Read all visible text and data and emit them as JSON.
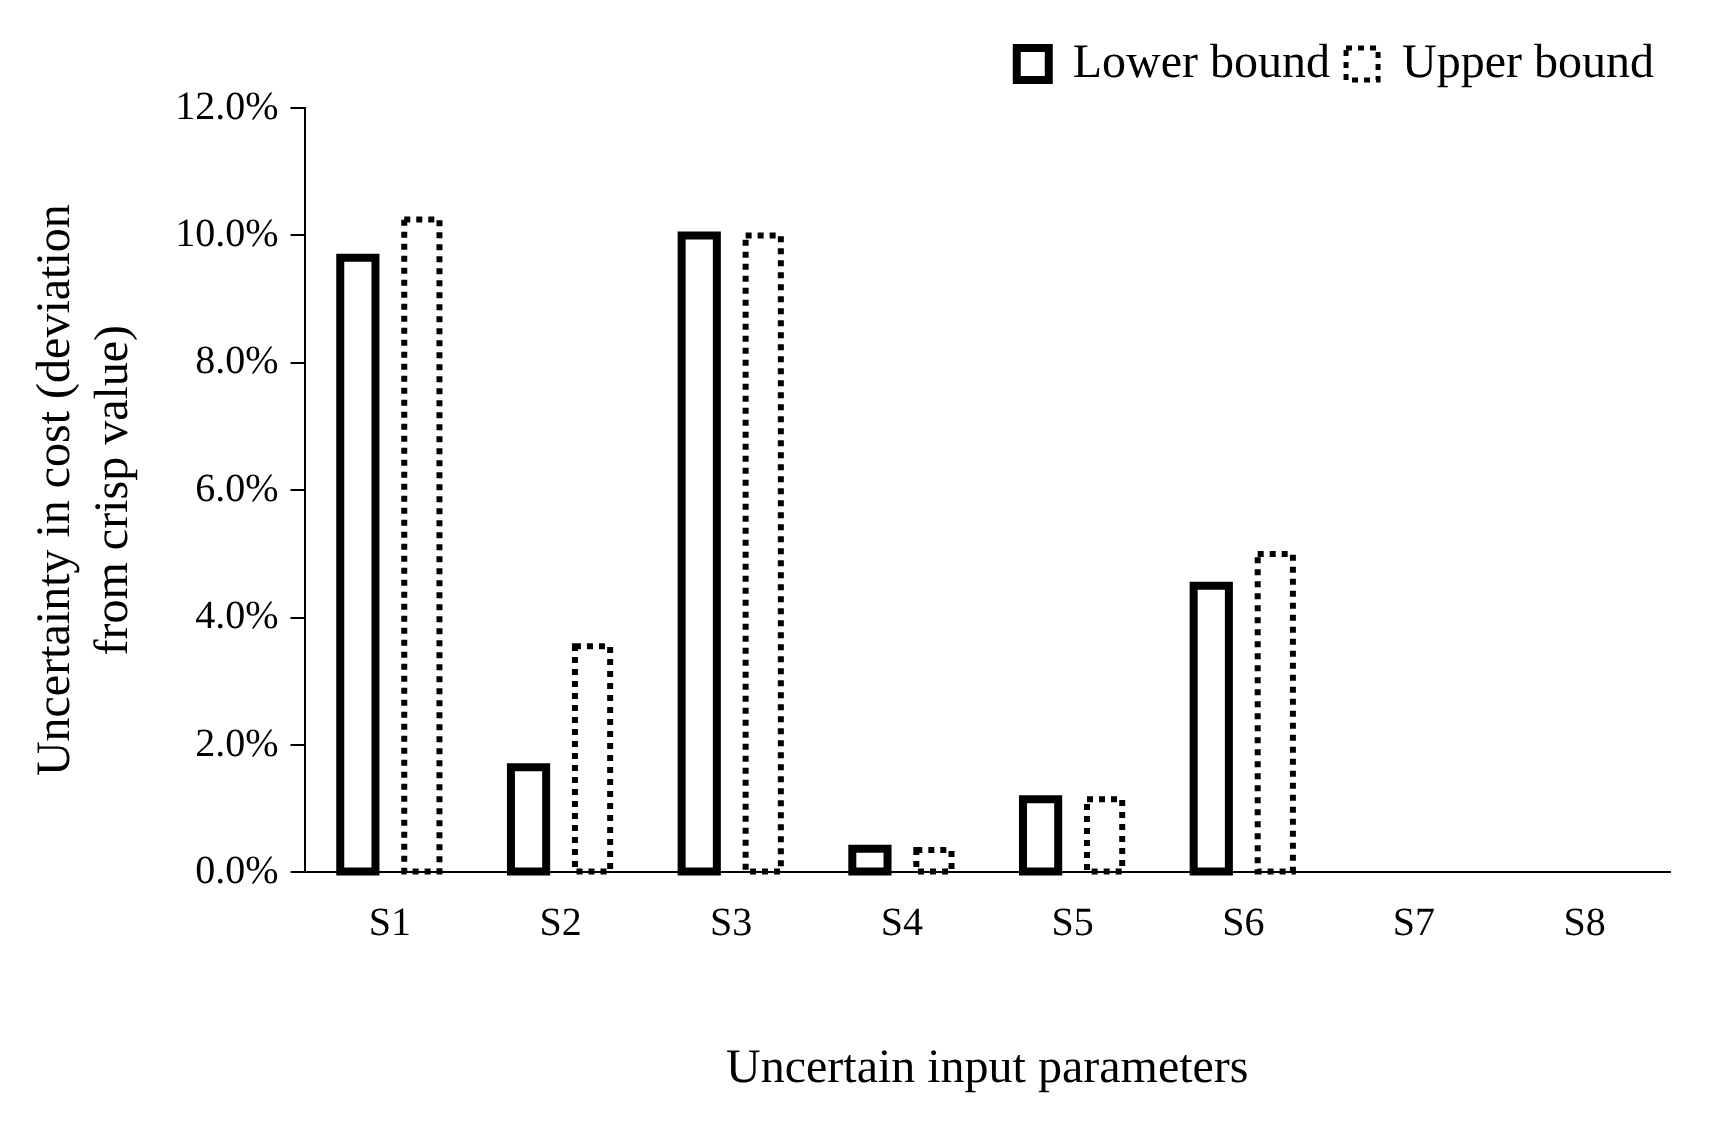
{
  "chart_data": {
    "type": "bar",
    "xlabel": "Uncertain input parameters",
    "ylabel": "Uncertainty in cost (deviation from crisp value)",
    "categories": [
      "S1",
      "S2",
      "S3",
      "S4",
      "S5",
      "S6",
      "S7",
      "S8"
    ],
    "series": [
      {
        "name": "Lower bound",
        "color": "#000000",
        "line_style": "solid",
        "values": [
          9.65,
          1.65,
          10.0,
          0.37,
          1.15,
          4.5,
          0,
          0
        ]
      },
      {
        "name": "Upper bound",
        "color": "#000000",
        "line_style": "dotted",
        "values": [
          10.25,
          3.55,
          10.0,
          0.35,
          1.15,
          5.0,
          0,
          0
        ]
      }
    ],
    "ylim": [
      0,
      12
    ],
    "yticks": [
      {
        "value": 0,
        "label": "0.0%"
      },
      {
        "value": 2,
        "label": "2.0%"
      },
      {
        "value": 4,
        "label": "4.0%"
      },
      {
        "value": 6,
        "label": "6.0%"
      },
      {
        "value": 8,
        "label": "8.0%"
      },
      {
        "value": 10,
        "label": "10.0%"
      },
      {
        "value": 12,
        "label": "12.0%"
      }
    ],
    "grid": false,
    "legend": "top right"
  }
}
